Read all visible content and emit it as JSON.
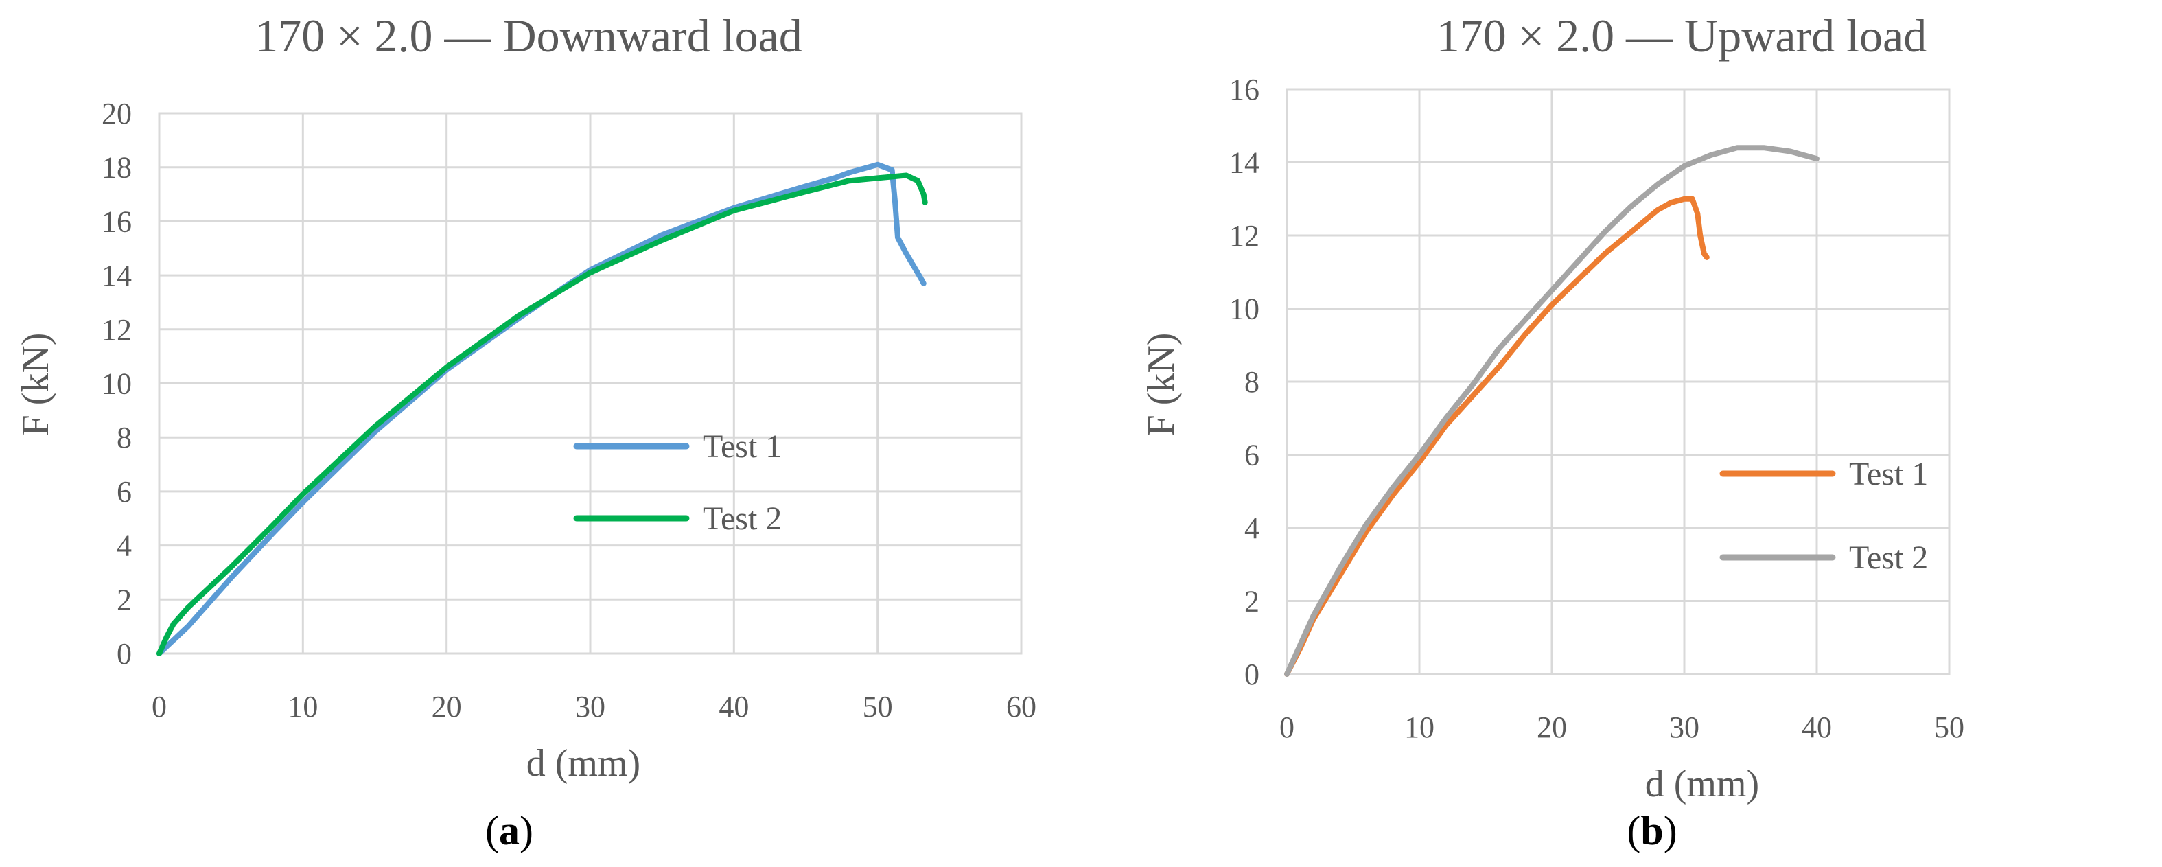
{
  "chart_data": [
    {
      "type": "line",
      "title": "170 × 2.0  — Downward load",
      "xlabel": "d (mm)",
      "ylabel": "F (kN)",
      "xlim": [
        0,
        60
      ],
      "ylim": [
        0,
        20
      ],
      "xticks": [
        "0",
        "10",
        "20",
        "30",
        "40",
        "50",
        "60"
      ],
      "yticks": [
        "0",
        "2",
        "4",
        "6",
        "8",
        "10",
        "12",
        "14",
        "16",
        "18",
        "20"
      ],
      "grid": true,
      "legend_position": "lower-right",
      "panel_open": "(",
      "panel_letter": "a",
      "panel_close": ")",
      "series": [
        {
          "name": "Test 1",
          "color": "#5B9BD5",
          "points": [
            [
              0,
              0
            ],
            [
              1,
              0.5
            ],
            [
              2,
              1.0
            ],
            [
              3,
              1.6
            ],
            [
              5,
              2.8
            ],
            [
              8,
              4.5
            ],
            [
              10,
              5.6
            ],
            [
              15,
              8.2
            ],
            [
              20,
              10.5
            ],
            [
              25,
              12.4
            ],
            [
              28,
              13.5
            ],
            [
              30,
              14.2
            ],
            [
              35,
              15.5
            ],
            [
              40,
              16.5
            ],
            [
              45,
              17.3
            ],
            [
              47,
              17.6
            ],
            [
              48,
              17.8
            ],
            [
              50,
              18.1
            ],
            [
              51,
              17.9
            ],
            [
              51.2,
              16.8
            ],
            [
              51.4,
              15.4
            ],
            [
              52,
              14.8
            ],
            [
              53,
              13.9
            ],
            [
              53.2,
              13.7
            ]
          ]
        },
        {
          "name": "Test 2",
          "color": "#00B050",
          "points": [
            [
              0,
              0
            ],
            [
              0.5,
              0.6
            ],
            [
              1,
              1.1
            ],
            [
              2,
              1.7
            ],
            [
              3,
              2.2
            ],
            [
              5,
              3.2
            ],
            [
              8,
              4.8
            ],
            [
              10,
              5.9
            ],
            [
              15,
              8.4
            ],
            [
              20,
              10.6
            ],
            [
              25,
              12.5
            ],
            [
              30,
              14.1
            ],
            [
              35,
              15.3
            ],
            [
              40,
              16.4
            ],
            [
              45,
              17.1
            ],
            [
              48,
              17.5
            ],
            [
              50,
              17.6
            ],
            [
              52,
              17.7
            ],
            [
              52.8,
              17.5
            ],
            [
              53.2,
              17.0
            ],
            [
              53.3,
              16.7
            ]
          ]
        }
      ]
    },
    {
      "type": "line",
      "title": "170 × 2.0  — Upward load",
      "xlabel": "d (mm)",
      "ylabel": "F (kN)",
      "xlim": [
        0,
        50
      ],
      "ylim": [
        0,
        16
      ],
      "xticks": [
        "0",
        "10",
        "20",
        "30",
        "40",
        "50"
      ],
      "yticks": [
        "0",
        "2",
        "4",
        "6",
        "8",
        "10",
        "12",
        "14",
        "16"
      ],
      "grid": true,
      "legend_position": "lower-right",
      "panel_open": "(",
      "panel_letter": "b",
      "panel_close": ")",
      "series": [
        {
          "name": "Test 1",
          "color": "#ED7D31",
          "points": [
            [
              0,
              0
            ],
            [
              1,
              0.7
            ],
            [
              2,
              1.5
            ],
            [
              4,
              2.7
            ],
            [
              6,
              3.9
            ],
            [
              8,
              4.9
            ],
            [
              10,
              5.8
            ],
            [
              12,
              6.8
            ],
            [
              14,
              7.6
            ],
            [
              16,
              8.4
            ],
            [
              18,
              9.3
            ],
            [
              20,
              10.1
            ],
            [
              22,
              10.8
            ],
            [
              24,
              11.5
            ],
            [
              26,
              12.1
            ],
            [
              27,
              12.4
            ],
            [
              28,
              12.7
            ],
            [
              29,
              12.9
            ],
            [
              30,
              13.0
            ],
            [
              30.6,
              13.0
            ],
            [
              31,
              12.6
            ],
            [
              31.2,
              12.0
            ],
            [
              31.5,
              11.5
            ],
            [
              31.7,
              11.4
            ]
          ]
        },
        {
          "name": "Test 2",
          "color": "#A5A5A5",
          "points": [
            [
              0,
              0
            ],
            [
              1,
              0.8
            ],
            [
              2,
              1.6
            ],
            [
              4,
              2.9
            ],
            [
              6,
              4.1
            ],
            [
              8,
              5.1
            ],
            [
              10,
              6.0
            ],
            [
              12,
              7.0
            ],
            [
              14,
              7.9
            ],
            [
              16,
              8.9
            ],
            [
              18,
              9.7
            ],
            [
              20,
              10.5
            ],
            [
              22,
              11.3
            ],
            [
              24,
              12.1
            ],
            [
              26,
              12.8
            ],
            [
              28,
              13.4
            ],
            [
              30,
              13.9
            ],
            [
              32,
              14.2
            ],
            [
              34,
              14.4
            ],
            [
              36,
              14.4
            ],
            [
              38,
              14.3
            ],
            [
              40,
              14.1
            ]
          ]
        }
      ]
    }
  ]
}
